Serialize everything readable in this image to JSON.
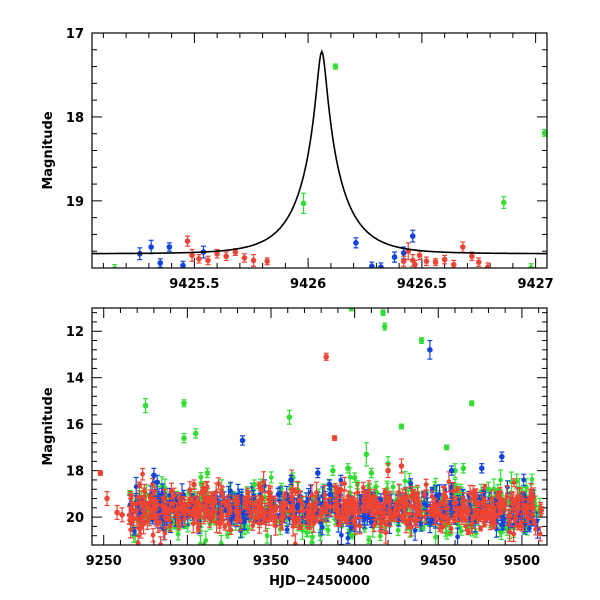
{
  "chart_data": [
    {
      "type": "scatter",
      "panel": "top",
      "xlabel": "",
      "ylabel": "Magnitude",
      "xlim": [
        9425.05,
        9427.05
      ],
      "ylim": [
        17.0,
        19.8
      ],
      "y_inverted": true,
      "x_ticks": [
        9425.5,
        9426,
        9426.5,
        9427
      ],
      "x_tick_labels": [
        "9425.5",
        "9426",
        "9426.5",
        "9427"
      ],
      "y_ticks": [
        17,
        18,
        19
      ],
      "y_tick_labels": [
        "17",
        "18",
        "19"
      ],
      "model_curve": {
        "peak_x": 9426.06,
        "peak_mag": 17.22,
        "baseline_mag": 19.63,
        "tE": 0.18
      },
      "series": [
        {
          "name": "green",
          "color": "#33dd33",
          "points": [
            [
              9425.15,
              19.81,
              0.05
            ],
            [
              9425.98,
              19.03,
              0.12
            ],
            [
              9426.12,
              17.4,
              0.03
            ],
            [
              9426.86,
              19.02,
              0.07
            ],
            [
              9426.98,
              19.8,
              0.05
            ],
            [
              9427.04,
              18.19,
              0.04
            ]
          ]
        },
        {
          "name": "blue",
          "color": "#1144dd",
          "points": [
            [
              9425.26,
              19.63,
              0.07
            ],
            [
              9425.31,
              19.55,
              0.08
            ],
            [
              9425.35,
              19.74,
              0.05
            ],
            [
              9425.39,
              19.55,
              0.05
            ],
            [
              9425.45,
              19.77,
              0.05
            ],
            [
              9425.54,
              19.61,
              0.07
            ],
            [
              9426.21,
              19.5,
              0.06
            ],
            [
              9426.28,
              19.78,
              0.05
            ],
            [
              9426.32,
              19.79,
              0.05
            ],
            [
              9426.38,
              19.67,
              0.06
            ],
            [
              9426.42,
              19.62,
              0.07
            ],
            [
              9426.46,
              19.42,
              0.07
            ]
          ]
        },
        {
          "name": "red",
          "color": "#ee4433",
          "points": [
            [
              9425.47,
              19.48,
              0.06
            ],
            [
              9425.49,
              19.65,
              0.07
            ],
            [
              9425.52,
              19.69,
              0.05
            ],
            [
              9425.56,
              19.71,
              0.05
            ],
            [
              9425.6,
              19.63,
              0.05
            ],
            [
              9425.64,
              19.66,
              0.05
            ],
            [
              9425.68,
              19.61,
              0.04
            ],
            [
              9425.72,
              19.68,
              0.05
            ],
            [
              9425.76,
              19.71,
              0.07
            ],
            [
              9425.82,
              19.72,
              0.04
            ],
            [
              9426.42,
              19.72,
              0.06
            ],
            [
              9426.44,
              19.6,
              0.1
            ],
            [
              9426.46,
              19.71,
              0.07
            ],
            [
              9426.47,
              19.76,
              0.05
            ],
            [
              9426.49,
              19.65,
              0.05
            ],
            [
              9426.52,
              19.72,
              0.05
            ],
            [
              9426.56,
              19.73,
              0.04
            ],
            [
              9426.6,
              19.7,
              0.05
            ],
            [
              9426.64,
              19.76,
              0.05
            ],
            [
              9426.68,
              19.55,
              0.06
            ],
            [
              9426.72,
              19.66,
              0.05
            ],
            [
              9426.75,
              19.73,
              0.05
            ],
            [
              9426.79,
              19.79,
              0.05
            ]
          ]
        }
      ]
    },
    {
      "type": "scatter",
      "panel": "bottom",
      "xlabel": "HJD−2450000",
      "ylabel": "Magnitude",
      "xlim": [
        9243,
        9515
      ],
      "ylim": [
        11.0,
        21.2
      ],
      "y_inverted": true,
      "x_ticks": [
        9250,
        9300,
        9350,
        9400,
        9450,
        9500
      ],
      "x_tick_labels": [
        "9250",
        "9300",
        "9350",
        "9400",
        "9450",
        "9500"
      ],
      "y_ticks": [
        12,
        14,
        16,
        18,
        20
      ],
      "y_tick_labels": [
        "12",
        "14",
        "16",
        "18",
        "20"
      ],
      "baseline": {
        "x_start": 9265,
        "x_end": 9512,
        "mag_center": 19.65,
        "mag_scatter": 0.45,
        "points_per_series": 420
      },
      "series": [
        {
          "name": "green",
          "color": "#33dd33",
          "points": [
            [
              9275,
              15.2,
              0.3
            ],
            [
              9298,
              15.1,
              0.15
            ],
            [
              9298,
              16.6,
              0.2
            ],
            [
              9305,
              16.4,
              0.2
            ],
            [
              9312,
              18.1,
              0.2
            ],
            [
              9340,
              18.6,
              0.2
            ],
            [
              9361,
              15.7,
              0.3
            ],
            [
              9363,
              18.3,
              0.2
            ],
            [
              9387,
              18.0,
              0.2
            ],
            [
              9396,
              17.9,
              0.2
            ],
            [
              9398,
              11.0,
              0.12
            ],
            [
              9400,
              18.3,
              0.2
            ],
            [
              9407,
              17.3,
              0.5
            ],
            [
              9410,
              18.1,
              0.2
            ],
            [
              9417,
              11.2,
              0.12
            ],
            [
              9418,
              11.8,
              0.15
            ],
            [
              9420,
              17.7,
              0.3
            ],
            [
              9428,
              16.1,
              0.1
            ],
            [
              9440,
              12.4,
              0.12
            ],
            [
              9455,
              17.0,
              0.1
            ],
            [
              9460,
              18.0,
              0.3
            ],
            [
              9465,
              17.9,
              0.2
            ],
            [
              9470,
              15.1,
              0.1
            ],
            [
              9480,
              18.8,
              0.3
            ]
          ]
        },
        {
          "name": "blue",
          "color": "#1144dd",
          "points": [
            [
              9280,
              18.2,
              0.3
            ],
            [
              9282,
              18.5,
              0.3
            ],
            [
              9333,
              16.7,
              0.2
            ],
            [
              9362,
              18.4,
              0.2
            ],
            [
              9378,
              18.1,
              0.2
            ],
            [
              9385,
              18.6,
              0.2
            ],
            [
              9445,
              12.8,
              0.4
            ],
            [
              9458,
              18.0,
              0.2
            ],
            [
              9476,
              17.9,
              0.2
            ],
            [
              9488,
              17.4,
              0.2
            ]
          ]
        },
        {
          "name": "red",
          "color": "#ee4433",
          "points": [
            [
              9248,
              18.1,
              0.1
            ],
            [
              9252,
              19.2,
              0.3
            ],
            [
              9258,
              19.8,
              0.3
            ],
            [
              9261,
              19.9,
              0.3
            ],
            [
              9304,
              18.6,
              0.2
            ],
            [
              9383,
              13.1,
              0.15
            ],
            [
              9388,
              16.6,
              0.1
            ],
            [
              9420,
              18.0,
              0.3
            ],
            [
              9428,
              17.8,
              0.3
            ]
          ]
        }
      ]
    }
  ]
}
